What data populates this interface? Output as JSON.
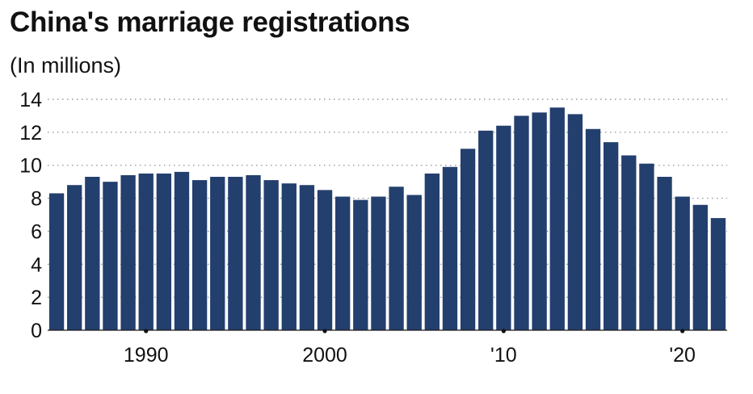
{
  "chart_data": {
    "type": "bar",
    "title": "China's marriage registrations",
    "subtitle": "(In millions)",
    "xlabel": "",
    "ylabel": "",
    "ylim": [
      0,
      14
    ],
    "yticks": [
      "0",
      "2",
      "4",
      "6",
      "8",
      "10",
      "12",
      "14"
    ],
    "xtick_labels": [
      {
        "year": 1990,
        "label": "1990"
      },
      {
        "year": 2000,
        "label": "2000"
      },
      {
        "year": 2010,
        "label": "'10"
      },
      {
        "year": 2020,
        "label": "'20"
      }
    ],
    "grid": "horizontal dotted",
    "bar_color": "#233f6e",
    "categories": [
      1985,
      1986,
      1987,
      1988,
      1989,
      1990,
      1991,
      1992,
      1993,
      1994,
      1995,
      1996,
      1997,
      1998,
      1999,
      2000,
      2001,
      2002,
      2003,
      2004,
      2005,
      2006,
      2007,
      2008,
      2009,
      2010,
      2011,
      2012,
      2013,
      2014,
      2015,
      2016,
      2017,
      2018,
      2019,
      2020,
      2021,
      2022
    ],
    "values": [
      8.3,
      8.8,
      9.3,
      9.0,
      9.4,
      9.5,
      9.5,
      9.6,
      9.1,
      9.3,
      9.3,
      9.4,
      9.1,
      8.9,
      8.8,
      8.5,
      8.1,
      7.9,
      8.1,
      8.7,
      8.2,
      9.5,
      9.9,
      11.0,
      12.1,
      12.4,
      13.0,
      13.2,
      13.5,
      13.1,
      12.2,
      11.4,
      10.6,
      10.1,
      9.3,
      8.1,
      7.6,
      6.8
    ]
  }
}
